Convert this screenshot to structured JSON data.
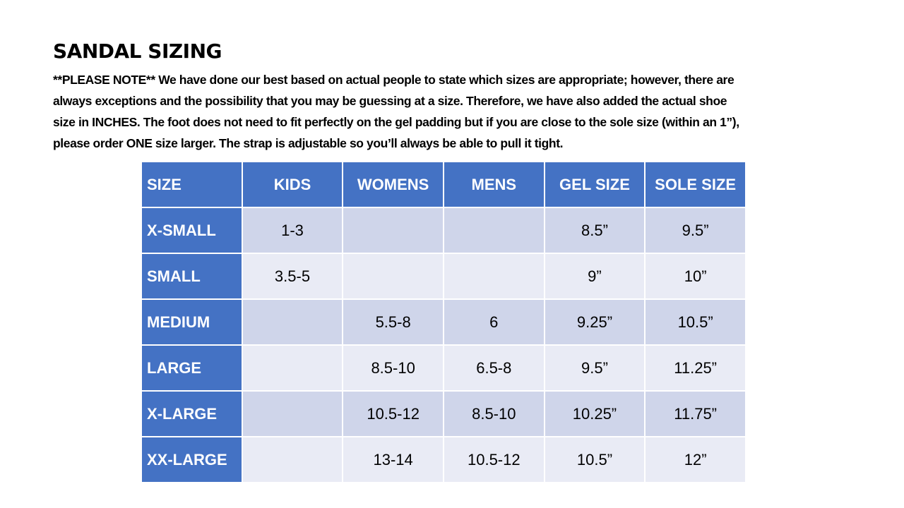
{
  "header": {
    "title": "SANDAL SIZING",
    "note_lines": [
      "**PLEASE NOTE**  We have done our best based on actual people to state which sizes are appropriate; however, there are",
      "always exceptions and the possibility that you may be guessing at a size.  Therefore, we have also added the actual shoe",
      "size in INCHES.  The foot does not need to fit perfectly on the gel padding but if you are close to the sole size (within an 1”),",
      "please order ONE size larger.  The strap is adjustable so you’ll always be able to pull it tight."
    ]
  },
  "table": {
    "columns": [
      "SIZE",
      "KIDS",
      "WOMENS",
      "MENS",
      "GEL SIZE",
      "SOLE SIZE"
    ],
    "rows": [
      [
        "X-SMALL",
        "1-3",
        null,
        null,
        "8.5”",
        "9.5”"
      ],
      [
        "SMALL",
        "3.5-5",
        null,
        null,
        "9”",
        "10”"
      ],
      [
        "MEDIUM",
        null,
        "5.5-8",
        "6",
        "9.25”",
        "10.5”"
      ],
      [
        "LARGE",
        null,
        "8.5-10",
        "6.5-8",
        "9.5”",
        "11.25”"
      ],
      [
        "X-LARGE",
        null,
        "10.5-12",
        "8.5-10",
        "10.25”",
        "11.75”"
      ],
      [
        "XX-LARGE",
        null,
        "13-14",
        "10.5-12",
        "10.5”",
        "12”"
      ]
    ]
  }
}
